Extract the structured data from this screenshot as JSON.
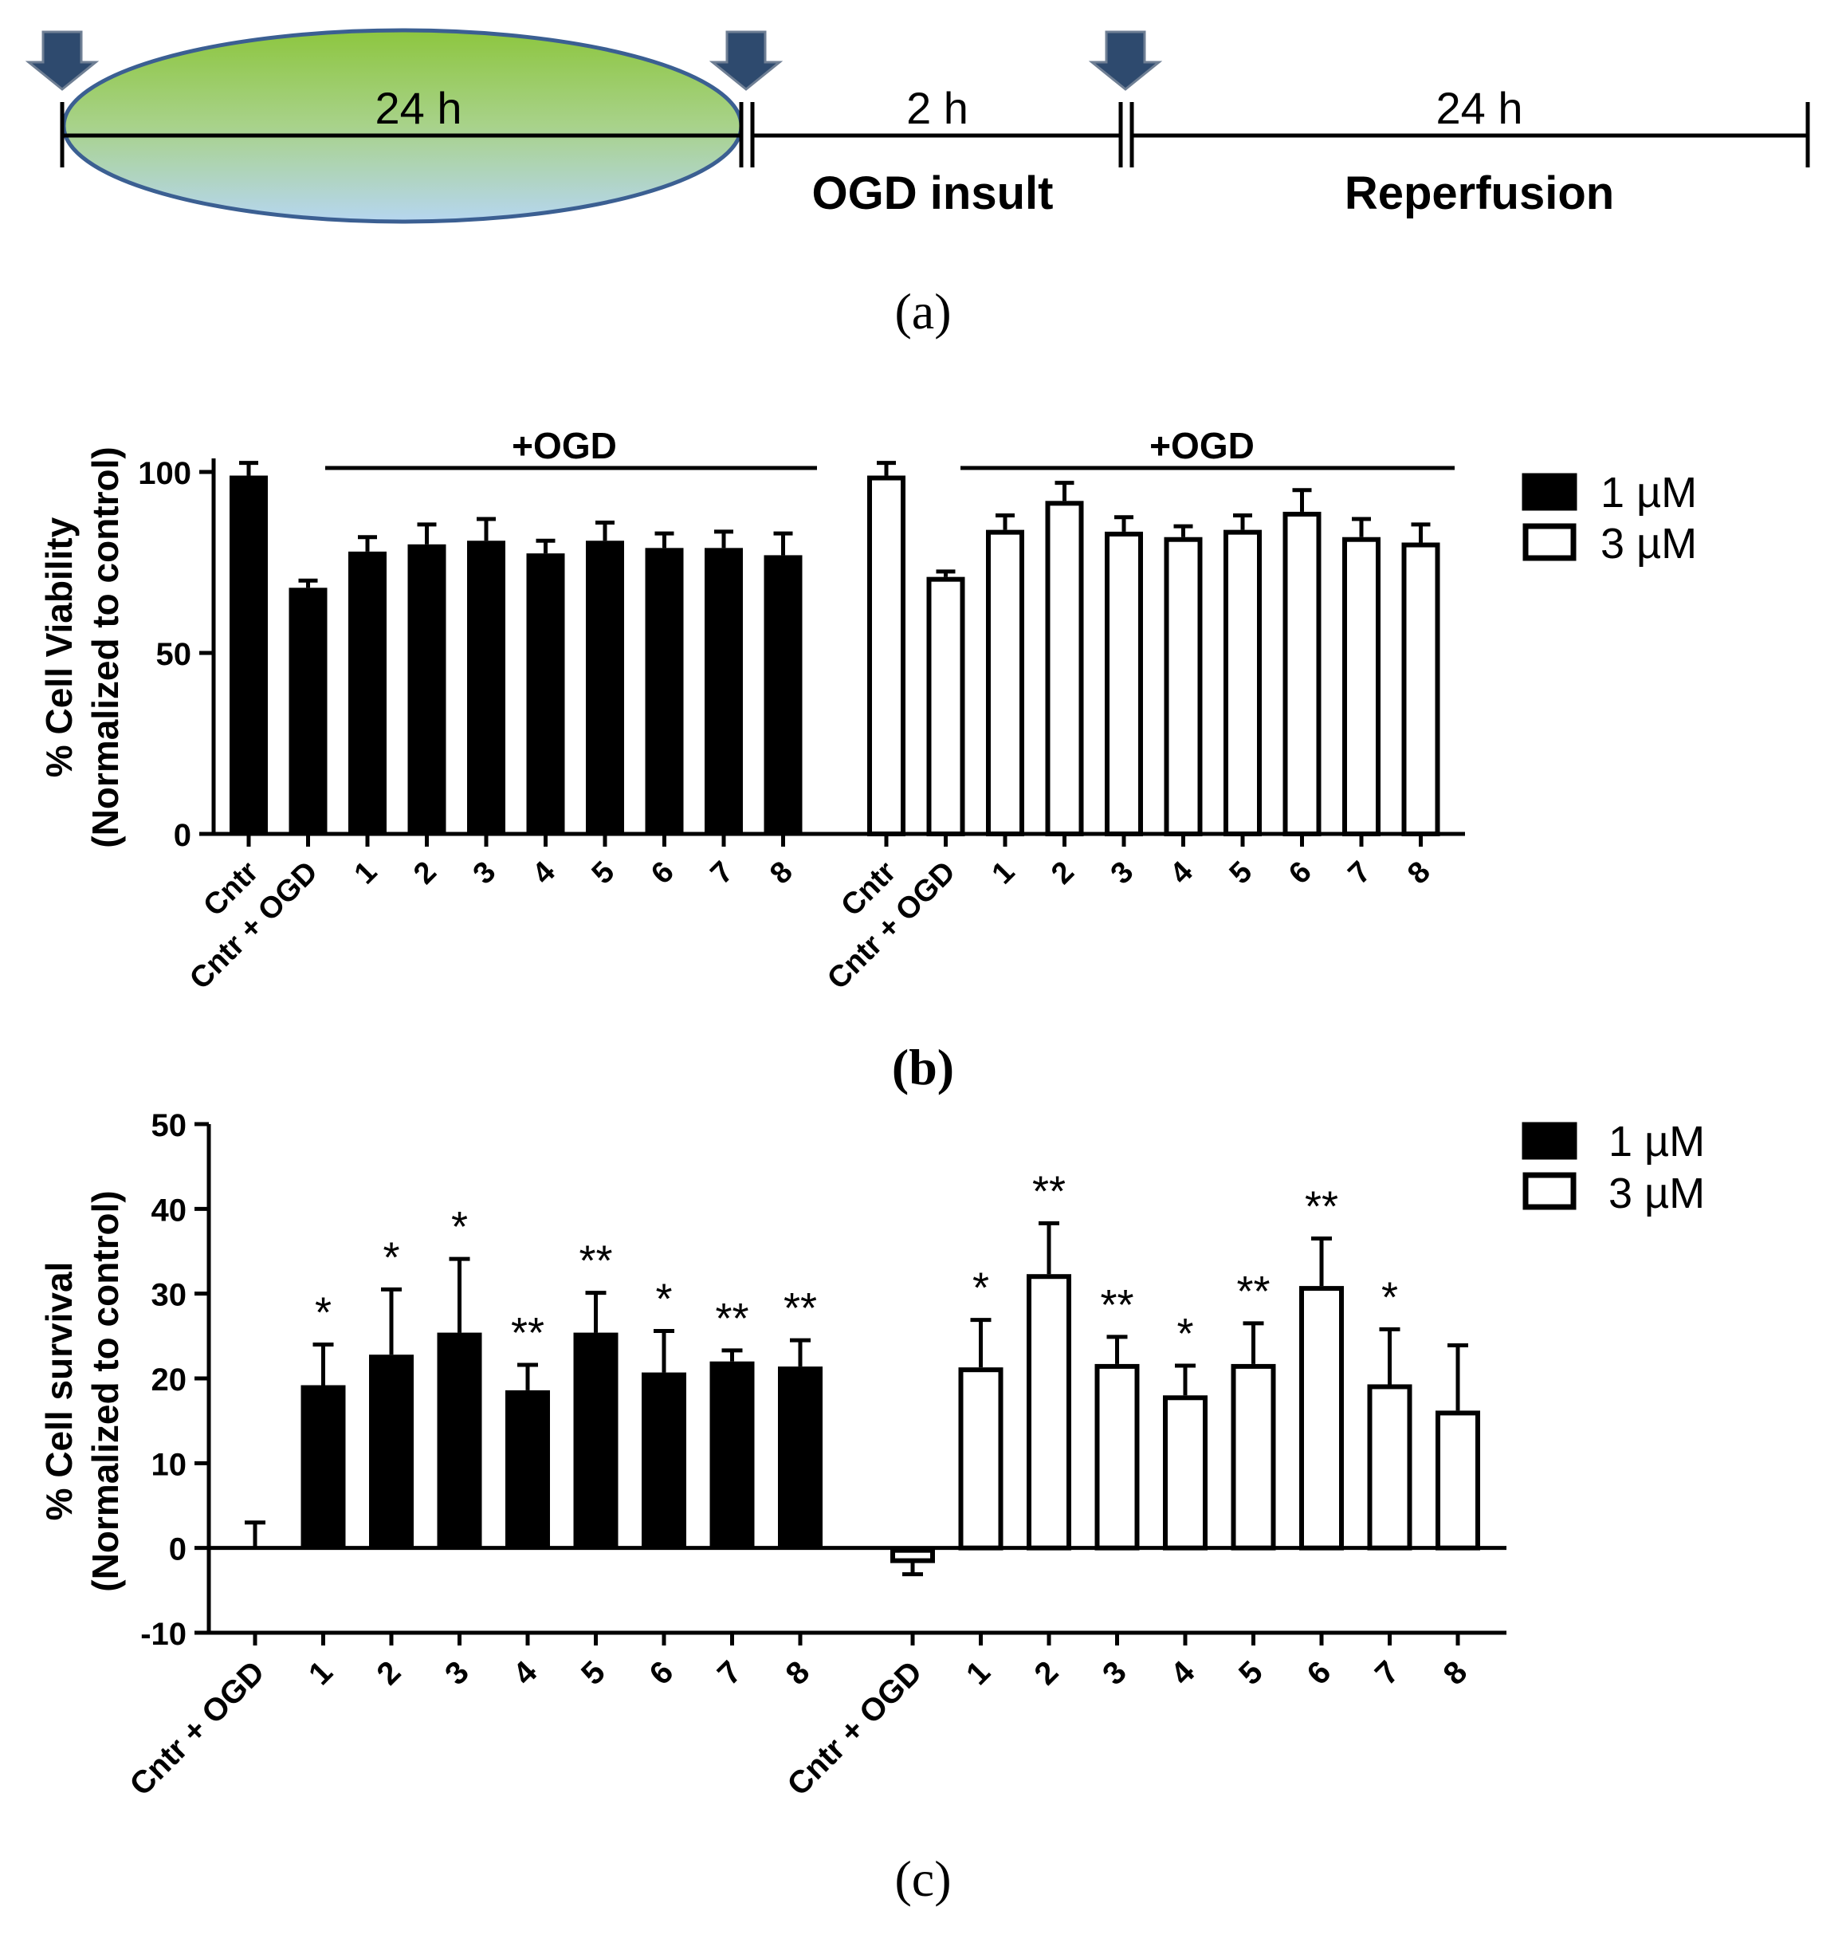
{
  "panel_a": {
    "segments": [
      {
        "duration": "24 h",
        "label": ""
      },
      {
        "duration": "2 h",
        "label": "OGD insult"
      },
      {
        "duration": "24 h",
        "label": "Reperfusion"
      }
    ],
    "caption": "(a)",
    "colors": {
      "arrow": "#2e4a6e",
      "ellipse_top": "#8dc63f",
      "ellipse_bottom": "#b6d6f0",
      "ellipse_stroke": "#3b5f92"
    }
  },
  "chart_data": [
    {
      "type": "bar",
      "panel": "b",
      "caption": "(b)",
      "ylabel_line1": "%  Cell  Viability",
      "ylabel_line2": "(Normalized to control)",
      "ylim": [
        0,
        100
      ],
      "yticks": [
        "0",
        "50",
        "100"
      ],
      "categories": [
        "Cntr",
        "Cntr + OGD",
        "1",
        "2",
        "3",
        "4",
        "5",
        "6",
        "7",
        "8"
      ],
      "bracket_label": "+OGD",
      "series": [
        {
          "name": "1 µM",
          "fill": "black",
          "values": [
            99,
            68,
            78,
            80,
            81,
            77.5,
            81,
            79,
            79,
            77
          ],
          "errors": [
            3.5,
            2,
            4,
            5.5,
            6,
            3.5,
            5,
            4,
            4.5,
            6
          ]
        },
        {
          "name": "3 µM",
          "fill": "white",
          "values": [
            99,
            71,
            84,
            92,
            83.5,
            82,
            84,
            89,
            82,
            80.5
          ],
          "errors": [
            3.5,
            1.5,
            4,
            5,
            4,
            3,
            4,
            6,
            5,
            5
          ]
        }
      ],
      "legend": [
        "1 µM",
        "3 µM"
      ]
    },
    {
      "type": "bar",
      "panel": "c",
      "caption": "(c)",
      "ylabel_line1": "%  Cell  survival",
      "ylabel_line2": "(Normalized to control)",
      "ylim": [
        -10,
        50
      ],
      "yticks": [
        "-10",
        "0",
        "10",
        "20",
        "30",
        "40",
        "50"
      ],
      "categories": [
        "Cntr + OGD",
        "1",
        "2",
        "3",
        "4",
        "5",
        "6",
        "7",
        "8"
      ],
      "series": [
        {
          "name": "1 µM",
          "fill": "black",
          "values": [
            0,
            19.2,
            22.8,
            25.4,
            18.6,
            25.4,
            20.7,
            22,
            21.4
          ],
          "errors": [
            3,
            4.8,
            7.7,
            8.7,
            3,
            4.7,
            4.9,
            1.3,
            3.1
          ],
          "significance": [
            "",
            "*",
            "*",
            "*",
            "**",
            "**",
            "*",
            "**",
            "**"
          ]
        },
        {
          "name": "3 µM",
          "fill": "white",
          "values": [
            -1.5,
            21.3,
            32.3,
            21.7,
            18,
            21.7,
            30.9,
            19.3,
            16.2
          ],
          "errors": [
            1.6,
            5.6,
            6,
            3.2,
            3.5,
            4.8,
            5.6,
            6.5,
            7.7
          ],
          "significance": [
            "",
            "*",
            "**",
            "**",
            "*",
            "**",
            "**",
            "*",
            ""
          ]
        }
      ],
      "legend": [
        "1 µM",
        "3 µM"
      ]
    }
  ]
}
